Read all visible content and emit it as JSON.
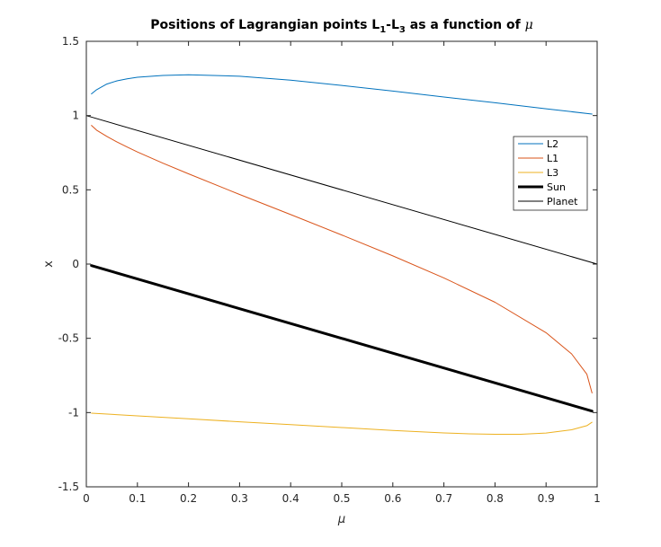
{
  "chart_data": {
    "type": "line",
    "title": {
      "prefix": "Positions of Lagrangian points L",
      "sub1": "1",
      "mid": "-L",
      "sub2": "3",
      "suffix": " as a function of ",
      "symbol": "μ"
    },
    "xlabel": "μ",
    "ylabel": "x",
    "xlim": [
      0,
      1
    ],
    "ylim": [
      -1.5,
      1.5
    ],
    "xticks": [
      "0",
      "0.1",
      "0.2",
      "0.3",
      "0.4",
      "0.5",
      "0.6",
      "0.7",
      "0.8",
      "0.9",
      "1"
    ],
    "yticks": [
      "-1.5",
      "-1",
      "-0.5",
      "0",
      "0.5",
      "1",
      "1.5"
    ],
    "grid": false,
    "legend_position": "right",
    "series": [
      {
        "name": "L2",
        "color": "#0072BD",
        "x": [
          0.01,
          0.02,
          0.04,
          0.06,
          0.08,
          0.1,
          0.15,
          0.2,
          0.3,
          0.4,
          0.5,
          0.6,
          0.7,
          0.8,
          0.9,
          0.99
        ],
        "y": [
          1.146,
          1.174,
          1.212,
          1.234,
          1.248,
          1.258,
          1.27,
          1.275,
          1.265,
          1.238,
          1.203,
          1.165,
          1.125,
          1.086,
          1.046,
          1.01
        ]
      },
      {
        "name": "L1",
        "color": "#D95319",
        "x": [
          0.01,
          0.02,
          0.04,
          0.06,
          0.08,
          0.1,
          0.15,
          0.2,
          0.3,
          0.4,
          0.5,
          0.6,
          0.7,
          0.8,
          0.9,
          0.95,
          0.98,
          0.99
        ],
        "y": [
          0.934,
          0.902,
          0.86,
          0.822,
          0.788,
          0.755,
          0.679,
          0.608,
          0.469,
          0.333,
          0.196,
          0.055,
          -0.093,
          -0.257,
          -0.462,
          -0.605,
          -0.742,
          -0.868
        ]
      },
      {
        "name": "L3",
        "color": "#EDB120",
        "x": [
          0.01,
          0.1,
          0.2,
          0.3,
          0.4,
          0.5,
          0.6,
          0.7,
          0.75,
          0.8,
          0.85,
          0.9,
          0.95,
          0.98,
          0.99
        ],
        "y": [
          -1.004,
          -1.022,
          -1.042,
          -1.062,
          -1.081,
          -1.101,
          -1.12,
          -1.137,
          -1.143,
          -1.146,
          -1.146,
          -1.138,
          -1.116,
          -1.088,
          -1.065
        ]
      },
      {
        "name": "Sun",
        "color": "#000000",
        "x": [
          0.01,
          0.99
        ],
        "y": [
          -0.01,
          -0.99
        ]
      },
      {
        "name": "Planet",
        "color": "#000000",
        "x": [
          0.0,
          1.0
        ],
        "y": [
          1.0,
          0.0
        ]
      }
    ]
  }
}
